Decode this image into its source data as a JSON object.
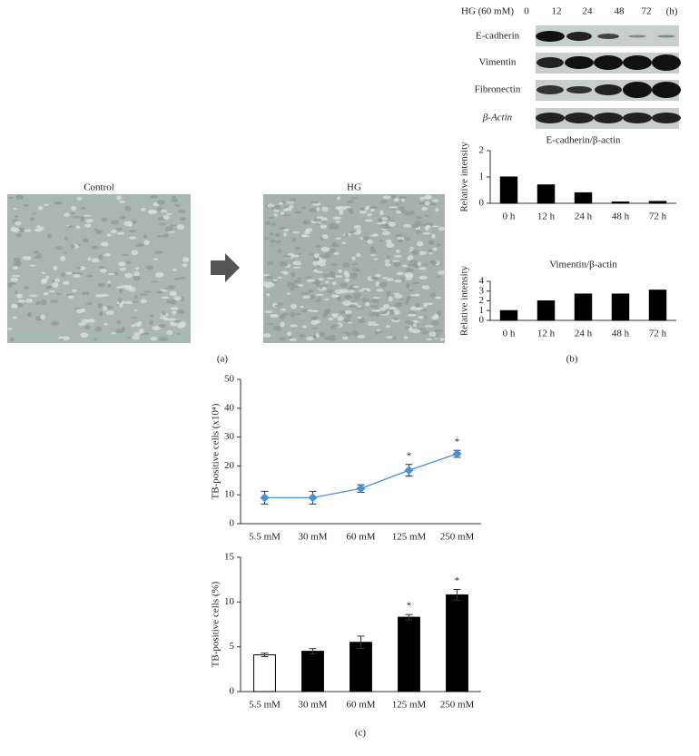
{
  "figure": {
    "panel_labels": [
      "(a)",
      "(b)",
      "(c)"
    ],
    "images": [
      "Control",
      "HG"
    ],
    "blot": {
      "header": "HG (60 mM)",
      "lanes": [
        "0",
        "12",
        "24",
        "48",
        "72"
      ],
      "unit": "(h)",
      "rows": [
        "E-cadherin",
        "Vimentin",
        "Fibronectin",
        "β-Actin"
      ]
    }
  },
  "chart_data": [
    {
      "type": "bar",
      "title": "E-cadherin/β-actin",
      "y_label": "Relative intensity",
      "categories": [
        "0 h",
        "12 h",
        "24 h",
        "48 h",
        "72 h"
      ],
      "values": [
        1.0,
        0.7,
        0.4,
        0.05,
        0.07
      ],
      "color": "#000000",
      "ylim": [
        0,
        2
      ],
      "yticks": [
        0,
        1,
        2
      ]
    },
    {
      "type": "bar",
      "title": "Vimentin/β-actin",
      "y_label": "Relative intensity",
      "categories": [
        "0 h",
        "12 h",
        "24 h",
        "48 h",
        "72 h"
      ],
      "values": [
        1.0,
        2.0,
        2.7,
        2.7,
        3.1
      ],
      "color": "#000000",
      "ylim": [
        0,
        4
      ],
      "yticks": [
        0,
        1,
        2,
        3,
        4
      ]
    },
    {
      "type": "line",
      "y_label": "TB-positive cells (x10⁴)",
      "categories": [
        "5.5 mM",
        "30 mM",
        "60 mM",
        "125 mM",
        "250 mM"
      ],
      "values": [
        9,
        9,
        12.2,
        18.5,
        24.2
      ],
      "errors": [
        2.2,
        2.2,
        1.3,
        2.0,
        1.2
      ],
      "annotations": [
        null,
        null,
        null,
        "*",
        "*"
      ],
      "color": "#4a90d9",
      "ylim": [
        0,
        50
      ],
      "yticks": [
        0,
        10,
        20,
        30,
        40,
        50
      ]
    },
    {
      "type": "bar",
      "y_label": "TB-positive cells (%)",
      "categories": [
        "5.5 mM",
        "30 mM",
        "60 mM",
        "125 mM",
        "250 mM"
      ],
      "values": [
        4.1,
        4.5,
        5.5,
        8.3,
        10.8
      ],
      "errors": [
        0.2,
        0.3,
        0.7,
        0.3,
        0.6
      ],
      "annotations": [
        null,
        null,
        null,
        "*",
        "*"
      ],
      "colors": [
        "#ffffff",
        "#000000",
        "#000000",
        "#000000",
        "#000000"
      ],
      "ylim": [
        0,
        15
      ],
      "yticks": [
        0,
        5,
        10,
        15
      ]
    }
  ]
}
